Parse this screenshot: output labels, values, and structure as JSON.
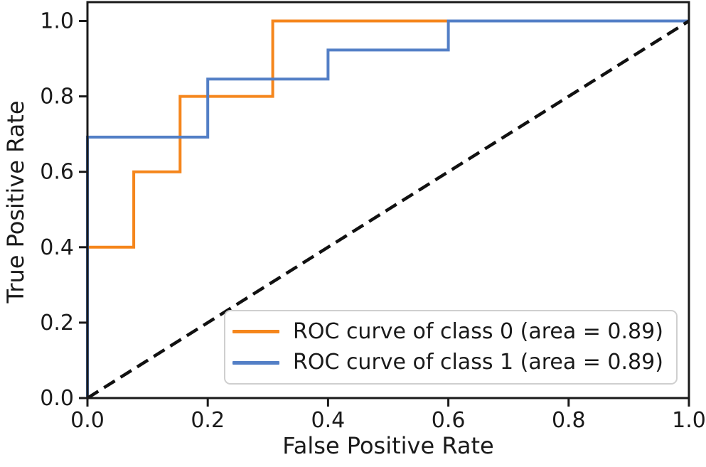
{
  "figure": {
    "background": "#ffffff"
  },
  "chart_data": {
    "type": "line",
    "subtype": "roc-step-curves",
    "title": "",
    "xlabel": "False Positive Rate",
    "ylabel": "True Positive Rate",
    "xlim": [
      0.0,
      1.0
    ],
    "ylim": [
      0.0,
      1.05
    ],
    "grid": false,
    "axis_color": "#1a1a1a",
    "text_color": "#1a1a1a",
    "x_tick_values": [
      0.0,
      0.2,
      0.4,
      0.6,
      0.8,
      1.0
    ],
    "x_tick_labels": [
      "0.0",
      "0.2",
      "0.4",
      "0.6",
      "0.8",
      "1.0"
    ],
    "y_tick_values": [
      0.0,
      0.2,
      0.4,
      0.6,
      0.8,
      1.0
    ],
    "y_tick_labels": [
      "0.0",
      "0.2",
      "0.4",
      "0.6",
      "0.8",
      "1.0"
    ],
    "legend": {
      "location": "lower right",
      "border_color": "#cfcfcf",
      "background": "#ffffff"
    },
    "series": [
      {
        "name": "ROC curve of class 0 (area = 0.89)",
        "auc": 0.89,
        "color": "#f5861c",
        "line_style": "solid",
        "line_width": 4,
        "in_legend": true,
        "points": [
          [
            0.0,
            0.0
          ],
          [
            0.0,
            0.4
          ],
          [
            0.077,
            0.4
          ],
          [
            0.077,
            0.6
          ],
          [
            0.154,
            0.6
          ],
          [
            0.154,
            0.8
          ],
          [
            0.308,
            0.8
          ],
          [
            0.308,
            1.0
          ],
          [
            1.0,
            1.0
          ]
        ]
      },
      {
        "name": "ROC curve of class 1 (area = 0.89)",
        "auc": 0.89,
        "color": "#537fc6",
        "line_style": "solid",
        "line_width": 4,
        "in_legend": true,
        "points": [
          [
            0.0,
            0.0
          ],
          [
            0.0,
            0.692
          ],
          [
            0.2,
            0.692
          ],
          [
            0.2,
            0.846
          ],
          [
            0.4,
            0.846
          ],
          [
            0.4,
            0.923
          ],
          [
            0.6,
            0.923
          ],
          [
            0.6,
            1.0
          ],
          [
            1.0,
            1.0
          ]
        ]
      },
      {
        "name": "chance diagonal",
        "color": "#111111",
        "line_style": "dashed",
        "line_width": 4.5,
        "in_legend": false,
        "points": [
          [
            0.0,
            0.0
          ],
          [
            1.0,
            1.0
          ]
        ]
      }
    ]
  }
}
